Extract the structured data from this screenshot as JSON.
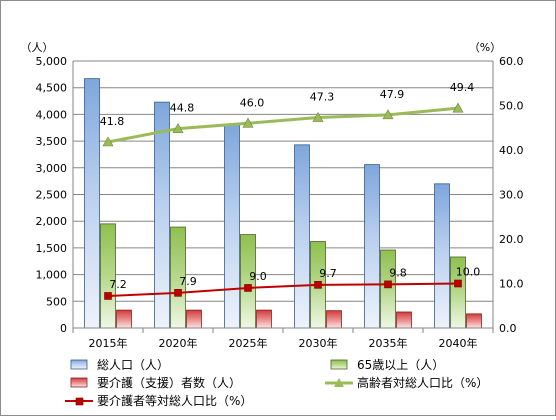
{
  "chart_data": {
    "type": "bar",
    "categories": [
      "2015年",
      "2020年",
      "2025年",
      "2030年",
      "2035年",
      "2040年"
    ],
    "y_left": {
      "unit": "（人）",
      "min": 0,
      "max": 5000,
      "step": 500,
      "ticks": [
        "0",
        "500",
        "1,000",
        "1,500",
        "2,000",
        "2,500",
        "3,000",
        "3,500",
        "4,000",
        "4,500",
        "5,000"
      ]
    },
    "y_right": {
      "unit": "（%）",
      "min": 0,
      "max": 60,
      "step": 10,
      "ticks": [
        "0.0",
        "10.0",
        "20.0",
        "30.0",
        "40.0",
        "50.0",
        "60.0"
      ]
    },
    "grid": "horizontal",
    "legend_position": "bottom",
    "series": [
      {
        "name": "総人口（人）",
        "kind": "bar",
        "axis": "left",
        "color": "#4f81bd",
        "values": [
          4670,
          4230,
          3820,
          3430,
          3060,
          2700
        ]
      },
      {
        "name": "65歳以上（人）",
        "kind": "bar",
        "axis": "left",
        "color": "#9bbb59",
        "values": [
          1950,
          1890,
          1750,
          1620,
          1460,
          1330
        ]
      },
      {
        "name": "要介護（支援）者数（人）",
        "kind": "bar",
        "axis": "left",
        "color": "#c0504d",
        "values": [
          335,
          335,
          335,
          325,
          300,
          265
        ]
      },
      {
        "name": "高齢者対総人口比（%）",
        "kind": "line",
        "axis": "right",
        "color": "#9bbb59",
        "marker": "triangle",
        "values": [
          41.8,
          44.8,
          46.0,
          47.3,
          47.9,
          49.4
        ],
        "labels": [
          "41.8",
          "44.8",
          "46.0",
          "47.3",
          "47.9",
          "49.4"
        ]
      },
      {
        "name": "要介護者等対総人口比（%）",
        "kind": "line",
        "axis": "right",
        "color": "#c00000",
        "marker": "square",
        "values": [
          7.2,
          7.9,
          9.0,
          9.7,
          9.8,
          10.0
        ],
        "labels": [
          "7.2",
          "7.9",
          "9.0",
          "9.7",
          "9.8",
          "10.0"
        ]
      }
    ]
  }
}
